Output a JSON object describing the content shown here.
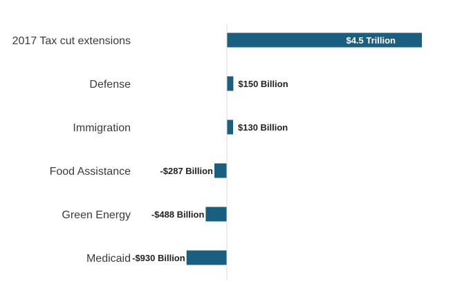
{
  "chart_data": {
    "type": "bar",
    "orientation": "horizontal",
    "title": "",
    "xlabel": "",
    "ylabel": "",
    "categories": [
      "2017 Tax cut extensions",
      "Defense",
      "Immigration",
      "Food Assistance",
      "Green Energy",
      "Medicaid"
    ],
    "values": [
      4500,
      150,
      130,
      -287,
      -488,
      -930
    ],
    "units": "billions of dollars",
    "data_labels": [
      "$4.5 Trillion",
      "$150 Billion",
      "$130 Billion",
      "-$287 Billion",
      "-$488 Billion",
      "-$930 Billion"
    ],
    "xlim": [
      -1000,
      4500
    ],
    "grid": false,
    "legend": "none",
    "bar_color": "#1a5e80",
    "inside_label_color": "#ffffff"
  }
}
